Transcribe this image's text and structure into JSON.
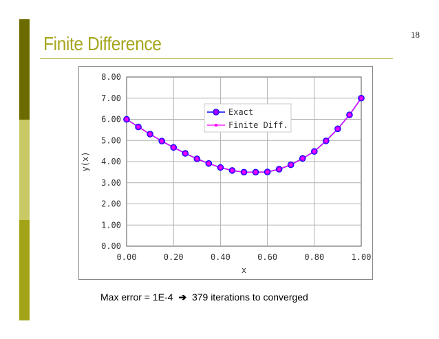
{
  "slide": {
    "title": "Finite Difference",
    "page_number": "18",
    "caption_left": "Max error = 1E-4",
    "caption_right": "379 iterations to converged"
  },
  "colors": {
    "accent_dark": "#6b6b00",
    "accent_light": "#c8c864",
    "accent_mid": "#a3a318",
    "title": "#a6a61e",
    "exact_series": "#0000ff",
    "fd_series": "#ff00ff",
    "marker_fill": "#9900ff"
  },
  "chart_data": {
    "type": "line",
    "title": "",
    "xlabel": "x",
    "ylabel": "y(x)",
    "xlim": [
      0,
      1
    ],
    "ylim": [
      0,
      8
    ],
    "x_ticks": [
      "0.00",
      "0.20",
      "0.40",
      "0.60",
      "0.80",
      "1.00"
    ],
    "y_ticks": [
      "0.00",
      "1.00",
      "2.00",
      "3.00",
      "4.00",
      "5.00",
      "6.00",
      "7.00",
      "8.00"
    ],
    "grid": true,
    "legend_position": "top-center",
    "x": [
      0.0,
      0.05,
      0.1,
      0.15,
      0.2,
      0.25,
      0.3,
      0.35,
      0.4,
      0.45,
      0.5,
      0.55,
      0.6,
      0.65,
      0.7,
      0.75,
      0.8,
      0.85,
      0.9,
      0.95,
      1.0
    ],
    "series": [
      {
        "name": "Exact",
        "color": "#0000ff",
        "marker": "circle",
        "values": [
          6.0,
          5.64,
          5.3,
          4.97,
          4.67,
          4.39,
          4.13,
          3.91,
          3.72,
          3.58,
          3.5,
          3.5,
          3.51,
          3.64,
          3.85,
          4.15,
          4.48,
          4.98,
          5.55,
          6.21,
          7.0
        ]
      },
      {
        "name": "Finite Diff.",
        "color": "#ff00ff",
        "marker": "square",
        "values": [
          6.0,
          5.64,
          5.3,
          4.97,
          4.67,
          4.39,
          4.13,
          3.91,
          3.72,
          3.58,
          3.5,
          3.5,
          3.51,
          3.64,
          3.85,
          4.15,
          4.48,
          4.98,
          5.55,
          6.21,
          7.0
        ]
      }
    ]
  }
}
